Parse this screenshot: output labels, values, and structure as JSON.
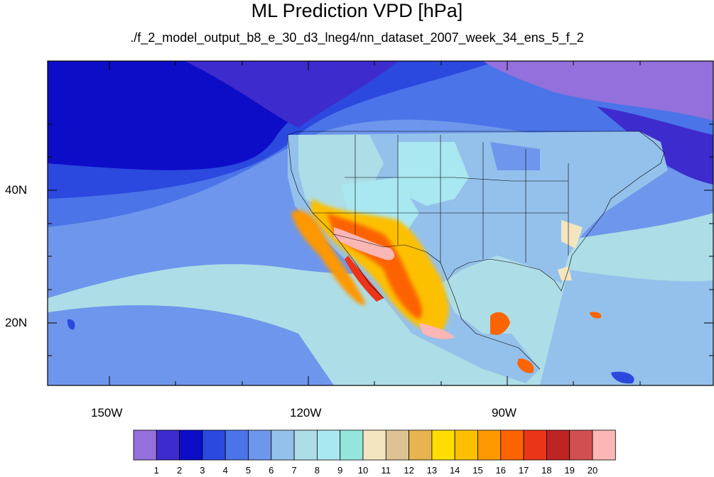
{
  "title": "ML Prediction VPD [hPa]",
  "subtitle": "./f_2_model_output_b8_e_30_d3_lneg4/nn_dataset_2007_week_34_ens_5_f_2",
  "axes": {
    "y_ticks": [
      {
        "value": 40,
        "label": "40N"
      },
      {
        "value": 20,
        "label": "20N"
      }
    ],
    "x_ticks": [
      {
        "value": -150,
        "label": "150W"
      },
      {
        "value": -120,
        "label": "120W"
      },
      {
        "value": -90,
        "label": "90W"
      }
    ]
  },
  "colorbar": {
    "colors": [
      "#9370db",
      "#3e2bcd",
      "#0d0dc8",
      "#2b48df",
      "#4b74e8",
      "#6e96ec",
      "#94c1eb",
      "#addde6",
      "#a9e7f1",
      "#94e6dc",
      "#f3e5bf",
      "#ddc293",
      "#e7b450",
      "#fcdf00",
      "#fdc000",
      "#fd9800",
      "#fc6400",
      "#ea3519",
      "#bd2424",
      "#d14f50",
      "#fbb6b6"
    ],
    "labels": [
      "1",
      "2",
      "3",
      "4",
      "5",
      "6",
      "7",
      "8",
      "9",
      "10",
      "11",
      "12",
      "13",
      "14",
      "15",
      "16",
      "17",
      "18",
      "19",
      "20"
    ]
  }
}
